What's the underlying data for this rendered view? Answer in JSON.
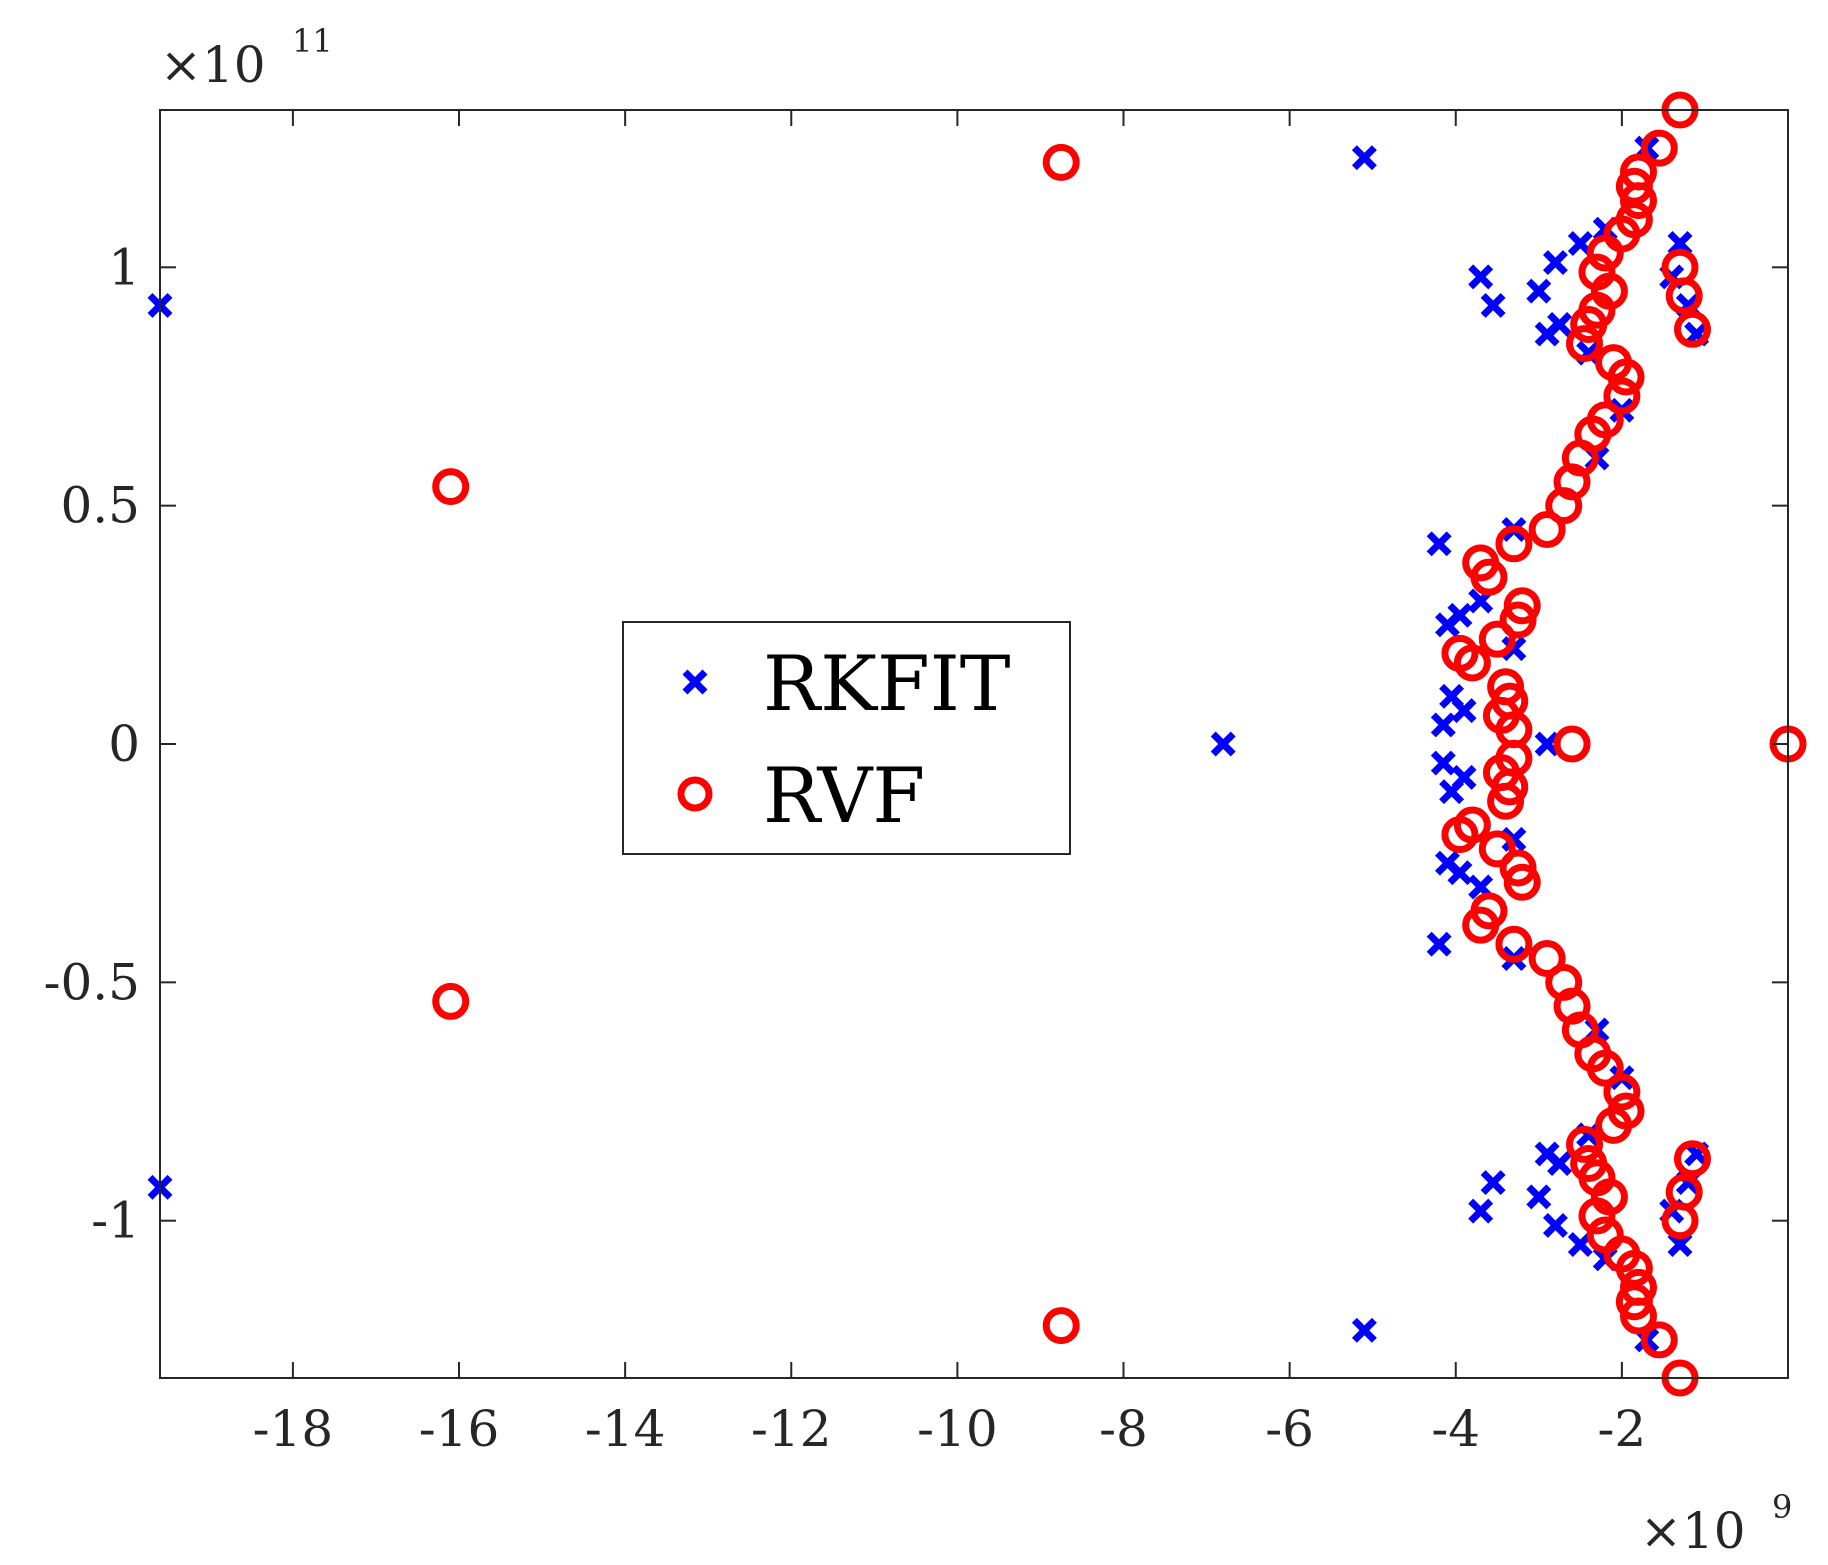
{
  "chart_data": {
    "type": "scatter",
    "title": "",
    "xlabel": "",
    "ylabel": "",
    "x_multiplier": {
      "base": "×10",
      "exponent": "9"
    },
    "y_multiplier": {
      "base": "×10",
      "exponent": "11"
    },
    "xlim": [
      -19.6,
      0
    ],
    "ylim": [
      -1.33,
      1.33
    ],
    "x_ticks": [
      -18,
      -16,
      -14,
      -12,
      -10,
      -8,
      -6,
      -4,
      -2
    ],
    "x_tick_labels": [
      "-18",
      "-16",
      "-14",
      "-12",
      "-10",
      "-8",
      "-6",
      "-4",
      "-2"
    ],
    "y_ticks": [
      -1,
      -0.5,
      0,
      0.5,
      1
    ],
    "y_tick_labels": [
      "-1",
      "-0.5",
      "0",
      "0.5",
      "1"
    ],
    "grid": false,
    "legend_position": "center-left",
    "colors": {
      "RKFIT": "#0000ff",
      "RVF": "#ff0000",
      "axis": "#262626"
    },
    "series": [
      {
        "name": "RKFIT",
        "marker": "x",
        "points": [
          [
            -19.6,
            0.92
          ],
          [
            -19.6,
            -0.93
          ],
          [
            -5.1,
            1.23
          ],
          [
            -5.1,
            -1.23
          ],
          [
            -6.8,
            0.0
          ],
          [
            -4.2,
            0.42
          ],
          [
            -4.2,
            -0.42
          ],
          [
            -4.1,
            0.25
          ],
          [
            -4.1,
            -0.25
          ],
          [
            -4.05,
            0.1
          ],
          [
            -4.05,
            -0.1
          ],
          [
            -4.15,
            0.04
          ],
          [
            -4.15,
            -0.04
          ],
          [
            -3.95,
            0.27
          ],
          [
            -3.95,
            -0.27
          ],
          [
            -3.9,
            0.07
          ],
          [
            -3.9,
            -0.07
          ],
          [
            -3.7,
            0.3
          ],
          [
            -3.7,
            -0.3
          ],
          [
            -3.7,
            0.98
          ],
          [
            -3.7,
            -0.98
          ],
          [
            -3.55,
            0.92
          ],
          [
            -3.55,
            -0.92
          ],
          [
            -3.3,
            0.45
          ],
          [
            -3.3,
            -0.45
          ],
          [
            -3.3,
            0.2
          ],
          [
            -3.3,
            -0.2
          ],
          [
            -3.0,
            0.95
          ],
          [
            -3.0,
            -0.95
          ],
          [
            -2.9,
            0.86
          ],
          [
            -2.9,
            -0.86
          ],
          [
            -2.8,
            1.01
          ],
          [
            -2.8,
            -1.01
          ],
          [
            -2.75,
            0.88
          ],
          [
            -2.75,
            -0.88
          ],
          [
            -2.9,
            0.0
          ],
          [
            -2.5,
            1.05
          ],
          [
            -2.5,
            -1.05
          ],
          [
            -2.4,
            0.82
          ],
          [
            -2.4,
            -0.82
          ],
          [
            -2.3,
            0.6
          ],
          [
            -2.3,
            -0.6
          ],
          [
            -2.2,
            1.08
          ],
          [
            -2.2,
            -1.08
          ],
          [
            -2.0,
            0.7
          ],
          [
            -2.0,
            -0.7
          ],
          [
            -1.7,
            1.25
          ],
          [
            -1.7,
            -1.25
          ],
          [
            -1.4,
            0.98
          ],
          [
            -1.4,
            -0.98
          ],
          [
            -1.3,
            1.05
          ],
          [
            -1.3,
            -1.05
          ],
          [
            -1.2,
            0.92
          ],
          [
            -1.2,
            -0.92
          ],
          [
            -1.1,
            0.86
          ],
          [
            -1.1,
            -0.86
          ]
        ]
      },
      {
        "name": "RVF",
        "marker": "o",
        "points": [
          [
            -8.75,
            1.22
          ],
          [
            -8.75,
            -1.22
          ],
          [
            -16.1,
            0.54
          ],
          [
            -16.1,
            -0.54
          ],
          [
            0.0,
            0.0
          ],
          [
            -2.6,
            0.0
          ],
          [
            -3.7,
            0.38
          ],
          [
            -3.7,
            -0.38
          ],
          [
            -3.6,
            0.35
          ],
          [
            -3.6,
            -0.35
          ],
          [
            -3.3,
            0.42
          ],
          [
            -3.3,
            -0.42
          ],
          [
            -3.2,
            0.29
          ],
          [
            -3.2,
            -0.29
          ],
          [
            -3.25,
            0.26
          ],
          [
            -3.25,
            -0.26
          ],
          [
            -3.5,
            0.22
          ],
          [
            -3.5,
            -0.22
          ],
          [
            -3.95,
            0.19
          ],
          [
            -3.95,
            -0.19
          ],
          [
            -3.8,
            0.17
          ],
          [
            -3.8,
            -0.17
          ],
          [
            -3.4,
            0.12
          ],
          [
            -3.4,
            -0.12
          ],
          [
            -3.35,
            0.09
          ],
          [
            -3.35,
            -0.09
          ],
          [
            -3.45,
            0.06
          ],
          [
            -3.45,
            -0.06
          ],
          [
            -3.3,
            0.03
          ],
          [
            -3.3,
            -0.03
          ],
          [
            -2.9,
            0.45
          ],
          [
            -2.9,
            -0.45
          ],
          [
            -2.7,
            0.5
          ],
          [
            -2.7,
            -0.5
          ],
          [
            -2.6,
            0.55
          ],
          [
            -2.6,
            -0.55
          ],
          [
            -2.5,
            0.6
          ],
          [
            -2.5,
            -0.6
          ],
          [
            -2.35,
            0.65
          ],
          [
            -2.35,
            -0.65
          ],
          [
            -2.2,
            0.68
          ],
          [
            -2.2,
            -0.68
          ],
          [
            -2.0,
            0.73
          ],
          [
            -2.0,
            -0.73
          ],
          [
            -1.95,
            0.77
          ],
          [
            -1.95,
            -0.77
          ],
          [
            -2.1,
            0.8
          ],
          [
            -2.1,
            -0.8
          ],
          [
            -2.45,
            0.84
          ],
          [
            -2.45,
            -0.84
          ],
          [
            -2.4,
            0.88
          ],
          [
            -2.4,
            -0.88
          ],
          [
            -2.3,
            0.91
          ],
          [
            -2.3,
            -0.91
          ],
          [
            -2.15,
            0.95
          ],
          [
            -2.15,
            -0.95
          ],
          [
            -2.3,
            0.99
          ],
          [
            -2.3,
            -0.99
          ],
          [
            -2.2,
            1.03
          ],
          [
            -2.2,
            -1.03
          ],
          [
            -2.0,
            1.07
          ],
          [
            -2.0,
            -1.07
          ],
          [
            -1.85,
            1.1
          ],
          [
            -1.85,
            -1.1
          ],
          [
            -1.8,
            1.14
          ],
          [
            -1.8,
            -1.14
          ],
          [
            -1.85,
            1.17
          ],
          [
            -1.85,
            -1.17
          ],
          [
            -1.8,
            1.2
          ],
          [
            -1.8,
            -1.2
          ],
          [
            -1.55,
            1.25
          ],
          [
            -1.55,
            -1.25
          ],
          [
            -1.3,
            1.33
          ],
          [
            -1.3,
            -1.33
          ],
          [
            -1.3,
            1.0
          ],
          [
            -1.3,
            -1.0
          ],
          [
            -1.25,
            0.94
          ],
          [
            -1.25,
            -0.94
          ],
          [
            -1.15,
            0.87
          ],
          [
            -1.15,
            -0.87
          ]
        ]
      }
    ]
  }
}
